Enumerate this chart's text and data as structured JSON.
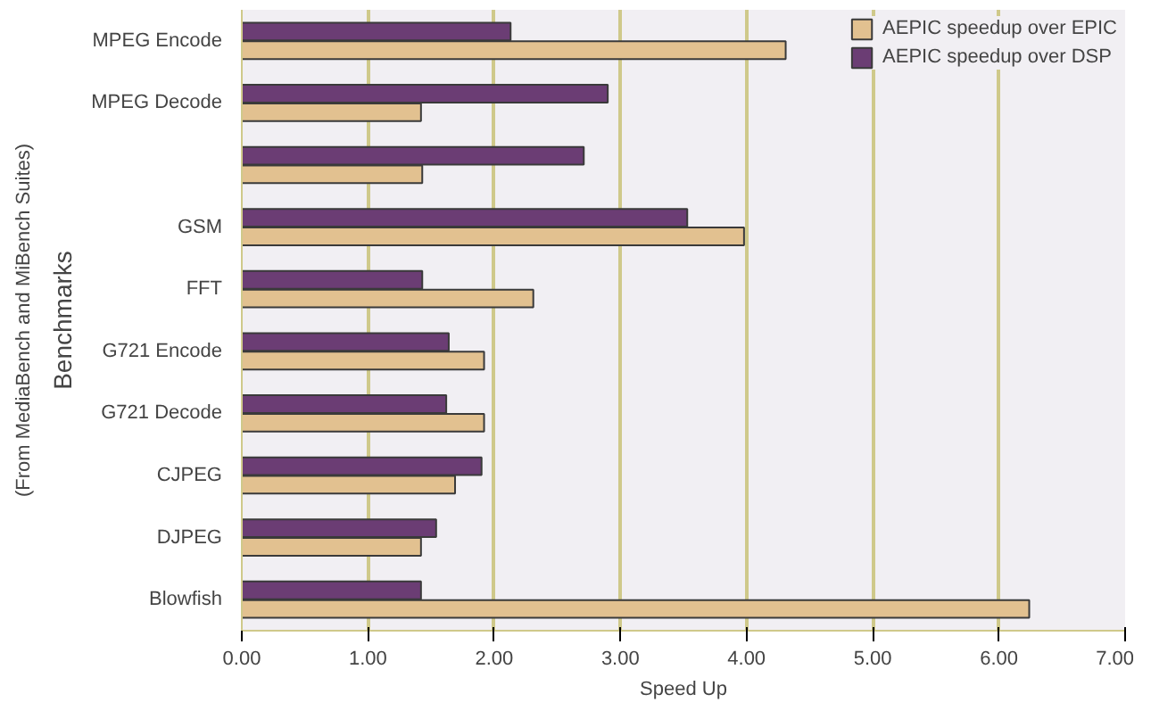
{
  "chart_data": {
    "type": "bar",
    "orientation": "horizontal",
    "xlabel": "Speed Up",
    "ylabel": "Benchmarks",
    "annotations": [
      "(From MediaBench and MiBench Suites)"
    ],
    "categories": [
      "MPEG Encode",
      "MPEG Decode",
      null,
      "GSM",
      "FFT",
      "G721 Encode",
      "G721 Decode",
      "CJPEG",
      "DJPEG",
      "Blowfish"
    ],
    "series": [
      {
        "name": "AEPIC speedup over EPIC",
        "color": "#e2c190",
        "values": [
          4.31,
          1.42,
          1.43,
          3.98,
          2.31,
          1.92,
          1.92,
          1.69,
          1.42,
          6.24
        ]
      },
      {
        "name": "AEPIC speedup over DSP",
        "color": "#6b3d74",
        "values": [
          2.13,
          2.9,
          2.71,
          3.53,
          1.43,
          1.64,
          1.62,
          1.9,
          1.54,
          1.42
        ]
      }
    ],
    "xlim": [
      0,
      7
    ],
    "xticks": [
      {
        "value": 0,
        "label": "0.00"
      },
      {
        "value": 1,
        "label": "1.00"
      },
      {
        "value": 2,
        "label": "2.00"
      },
      {
        "value": 3,
        "label": "3.00"
      },
      {
        "value": 4,
        "label": "4.00"
      },
      {
        "value": 5,
        "label": "5.00"
      },
      {
        "value": 6,
        "label": "6.00"
      },
      {
        "value": 7,
        "label": "7.00"
      }
    ],
    "grid": "x",
    "legend": "top"
  }
}
